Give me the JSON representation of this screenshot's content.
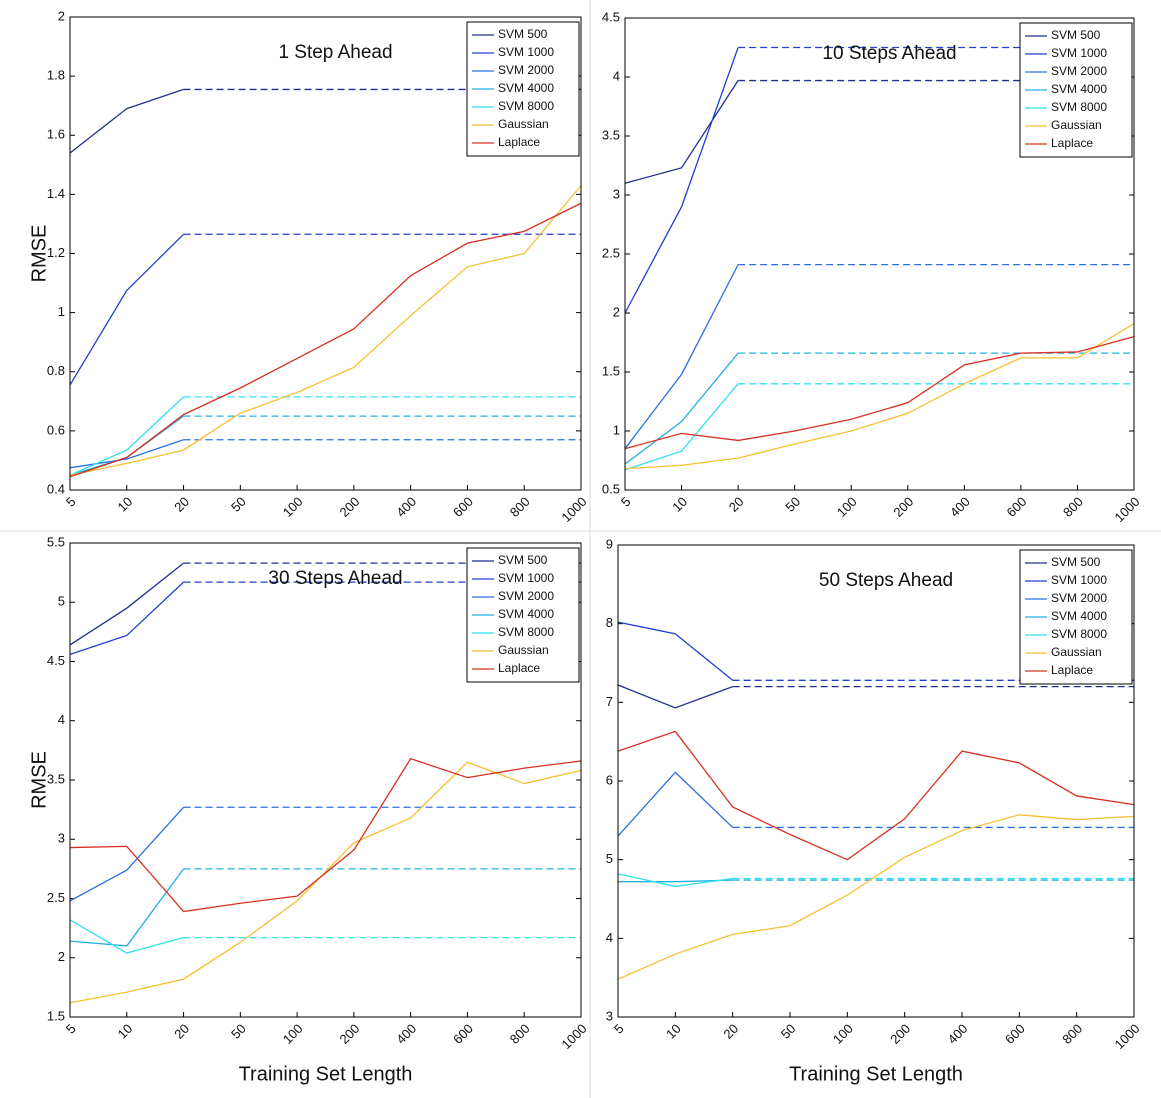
{
  "chart_data": [
    {
      "type": "line",
      "title": "1 Step Ahead",
      "y_label": "RMSE",
      "categories": [
        "5",
        "10",
        "20",
        "50",
        "100",
        "200",
        "400",
        "600",
        "800",
        "1000"
      ],
      "ylim": [
        0.4,
        2
      ],
      "yticks": [
        0.4,
        0.6,
        0.8,
        1,
        1.2,
        1.4,
        1.6,
        1.8,
        2
      ],
      "legend": "upper right",
      "series": [
        {
          "name": "SVM  500",
          "color": "#1f2f8f",
          "dashed_from": "20",
          "values": [
            1.54,
            1.69,
            1.755,
            1.755,
            1.755,
            1.755,
            1.755,
            1.755,
            1.755,
            1.755
          ]
        },
        {
          "name": "SVM  1000",
          "color": "#2040d0",
          "dashed_from": "20",
          "values": [
            0.755,
            1.075,
            1.265,
            1.265,
            1.265,
            1.265,
            1.265,
            1.265,
            1.265,
            1.265
          ]
        },
        {
          "name": "SVM  2000",
          "color": "#2a70e0",
          "dashed_from": "20",
          "values": [
            0.475,
            0.505,
            0.57,
            0.57,
            0.57,
            0.57,
            0.57,
            0.57,
            0.57,
            0.57
          ]
        },
        {
          "name": "SVM  4000",
          "color": "#20b0e0",
          "dashed_from": "20",
          "values": [
            0.45,
            0.51,
            0.65,
            0.65,
            0.65,
            0.65,
            0.65,
            0.65,
            0.65,
            0.65
          ]
        },
        {
          "name": "SVM  8000",
          "color": "#30e0f0",
          "dashed_from": "20",
          "values": [
            0.45,
            0.535,
            0.715,
            0.715,
            0.715,
            0.715,
            0.715,
            0.715,
            0.715,
            0.715
          ]
        },
        {
          "name": "Gaussian",
          "color": "#f5c030",
          "values": [
            0.45,
            0.49,
            0.535,
            0.66,
            0.73,
            0.815,
            0.99,
            1.155,
            1.2,
            1.43
          ]
        },
        {
          "name": "Laplace",
          "color": "#d83020",
          "values": [
            0.445,
            0.51,
            0.655,
            0.745,
            0.845,
            0.945,
            1.125,
            1.235,
            1.275,
            1.37
          ]
        }
      ]
    },
    {
      "type": "line",
      "title": "10 Steps Ahead",
      "categories": [
        "5",
        "10",
        "20",
        "50",
        "100",
        "200",
        "400",
        "600",
        "800",
        "1000"
      ],
      "ylim": [
        0.5,
        4.5
      ],
      "yticks": [
        0.5,
        1,
        1.5,
        2,
        2.5,
        3,
        3.5,
        4,
        4.5
      ],
      "legend": "upper right",
      "series": [
        {
          "name": "SVM  500",
          "color": "#1f2f8f",
          "dashed_from": "20",
          "values": [
            3.1,
            3.23,
            3.97,
            3.97,
            3.97,
            3.97,
            3.97,
            3.97,
            3.97,
            3.97
          ]
        },
        {
          "name": "SVM  1000",
          "color": "#2040d0",
          "dashed_from": "20",
          "values": [
            2.0,
            2.9,
            4.25,
            4.25,
            4.25,
            4.25,
            4.25,
            4.25,
            4.25,
            4.25
          ]
        },
        {
          "name": "SVM  2000",
          "color": "#2a70e0",
          "dashed_from": "20",
          "values": [
            0.85,
            1.48,
            2.41,
            2.41,
            2.41,
            2.41,
            2.41,
            2.41,
            2.41,
            2.41
          ]
        },
        {
          "name": "SVM  4000",
          "color": "#20b0e0",
          "dashed_from": "20",
          "values": [
            0.72,
            1.08,
            1.66,
            1.66,
            1.66,
            1.66,
            1.66,
            1.66,
            1.66,
            1.66
          ]
        },
        {
          "name": "SVM  8000",
          "color": "#30e0f0",
          "dashed_from": "20",
          "values": [
            0.67,
            0.83,
            1.4,
            1.4,
            1.4,
            1.4,
            1.4,
            1.4,
            1.4,
            1.4
          ]
        },
        {
          "name": "Gaussian",
          "color": "#f5c030",
          "values": [
            0.68,
            0.71,
            0.77,
            0.89,
            1.0,
            1.15,
            1.4,
            1.62,
            1.62,
            1.91
          ]
        },
        {
          "name": "Laplace",
          "color": "#d83020",
          "values": [
            0.85,
            0.98,
            0.92,
            1.0,
            1.1,
            1.24,
            1.56,
            1.66,
            1.67,
            1.8
          ]
        }
      ]
    },
    {
      "type": "line",
      "title": "30 Steps Ahead",
      "y_label": "RMSE",
      "x_label": "Training Set Length",
      "categories": [
        "5",
        "10",
        "20",
        "50",
        "100",
        "200",
        "400",
        "600",
        "800",
        "1000"
      ],
      "ylim": [
        1.5,
        5.5
      ],
      "yticks": [
        1.5,
        2,
        2.5,
        3,
        3.5,
        4,
        4.5,
        5,
        5.5
      ],
      "legend": "upper right",
      "series": [
        {
          "name": "SVM  500",
          "color": "#1f2f8f",
          "dashed_from": "20",
          "values": [
            4.64,
            4.95,
            5.33,
            5.33,
            5.33,
            5.33,
            5.33,
            5.33,
            5.33,
            5.33
          ]
        },
        {
          "name": "SVM  1000",
          "color": "#2040d0",
          "dashed_from": "20",
          "values": [
            4.56,
            4.72,
            5.17,
            5.17,
            5.17,
            5.17,
            5.17,
            5.17,
            5.17,
            5.17
          ]
        },
        {
          "name": "SVM  2000",
          "color": "#2a70e0",
          "dashed_from": "20",
          "values": [
            2.48,
            2.74,
            3.27,
            3.27,
            3.27,
            3.27,
            3.27,
            3.27,
            3.27,
            3.27
          ]
        },
        {
          "name": "SVM  4000",
          "color": "#20b0e0",
          "dashed_from": "20",
          "values": [
            2.14,
            2.1,
            2.75,
            2.75,
            2.75,
            2.75,
            2.75,
            2.75,
            2.75,
            2.75
          ]
        },
        {
          "name": "SVM  8000",
          "color": "#30e0f0",
          "dashed_from": "20",
          "values": [
            2.32,
            2.04,
            2.17,
            2.17,
            2.17,
            2.17,
            2.17,
            2.17,
            2.17,
            2.17
          ]
        },
        {
          "name": "Gaussian",
          "color": "#f5c030",
          "values": [
            1.62,
            1.71,
            1.82,
            2.13,
            2.48,
            2.97,
            3.18,
            3.65,
            3.47,
            3.58
          ]
        },
        {
          "name": "Laplace",
          "color": "#d83020",
          "values": [
            2.93,
            2.94,
            2.39,
            2.46,
            2.52,
            2.91,
            3.68,
            3.52,
            3.6,
            3.66
          ]
        }
      ]
    },
    {
      "type": "line",
      "title": "50 Steps Ahead",
      "x_label": "Training Set Length",
      "categories": [
        "5",
        "10",
        "20",
        "50",
        "100",
        "200",
        "400",
        "600",
        "800",
        "1000"
      ],
      "ylim": [
        3,
        9
      ],
      "yticks": [
        3,
        4,
        5,
        6,
        7,
        8,
        9
      ],
      "legend": "upper right",
      "series": [
        {
          "name": "SVM  500",
          "color": "#1f2f8f",
          "dashed_from": "20",
          "values": [
            7.22,
            6.93,
            7.2,
            7.2,
            7.2,
            7.2,
            7.2,
            7.2,
            7.2,
            7.2
          ]
        },
        {
          "name": "SVM  1000",
          "color": "#2040d0",
          "dashed_from": "20",
          "values": [
            8.02,
            7.87,
            7.28,
            7.28,
            7.28,
            7.28,
            7.28,
            7.28,
            7.28,
            7.28
          ]
        },
        {
          "name": "SVM  2000",
          "color": "#2a70e0",
          "dashed_from": "20",
          "values": [
            5.3,
            6.11,
            5.41,
            5.41,
            5.41,
            5.41,
            5.41,
            5.41,
            5.41,
            5.41
          ]
        },
        {
          "name": "SVM  4000",
          "color": "#20b0e0",
          "dashed_from": "20",
          "values": [
            4.72,
            4.72,
            4.74,
            4.74,
            4.74,
            4.74,
            4.74,
            4.74,
            4.74,
            4.74
          ]
        },
        {
          "name": "SVM  8000",
          "color": "#30e0f0",
          "dashed_from": "20",
          "values": [
            4.82,
            4.66,
            4.76,
            4.76,
            4.76,
            4.76,
            4.76,
            4.76,
            4.76,
            4.76
          ]
        },
        {
          "name": "Gaussian",
          "color": "#f5c030",
          "values": [
            3.48,
            3.8,
            4.05,
            4.16,
            4.55,
            5.03,
            5.37,
            5.57,
            5.51,
            5.55
          ]
        },
        {
          "name": "Laplace",
          "color": "#d83020",
          "values": [
            6.38,
            6.63,
            5.67,
            5.32,
            5.0,
            5.52,
            6.38,
            6.23,
            5.81,
            5.7
          ]
        }
      ]
    }
  ]
}
